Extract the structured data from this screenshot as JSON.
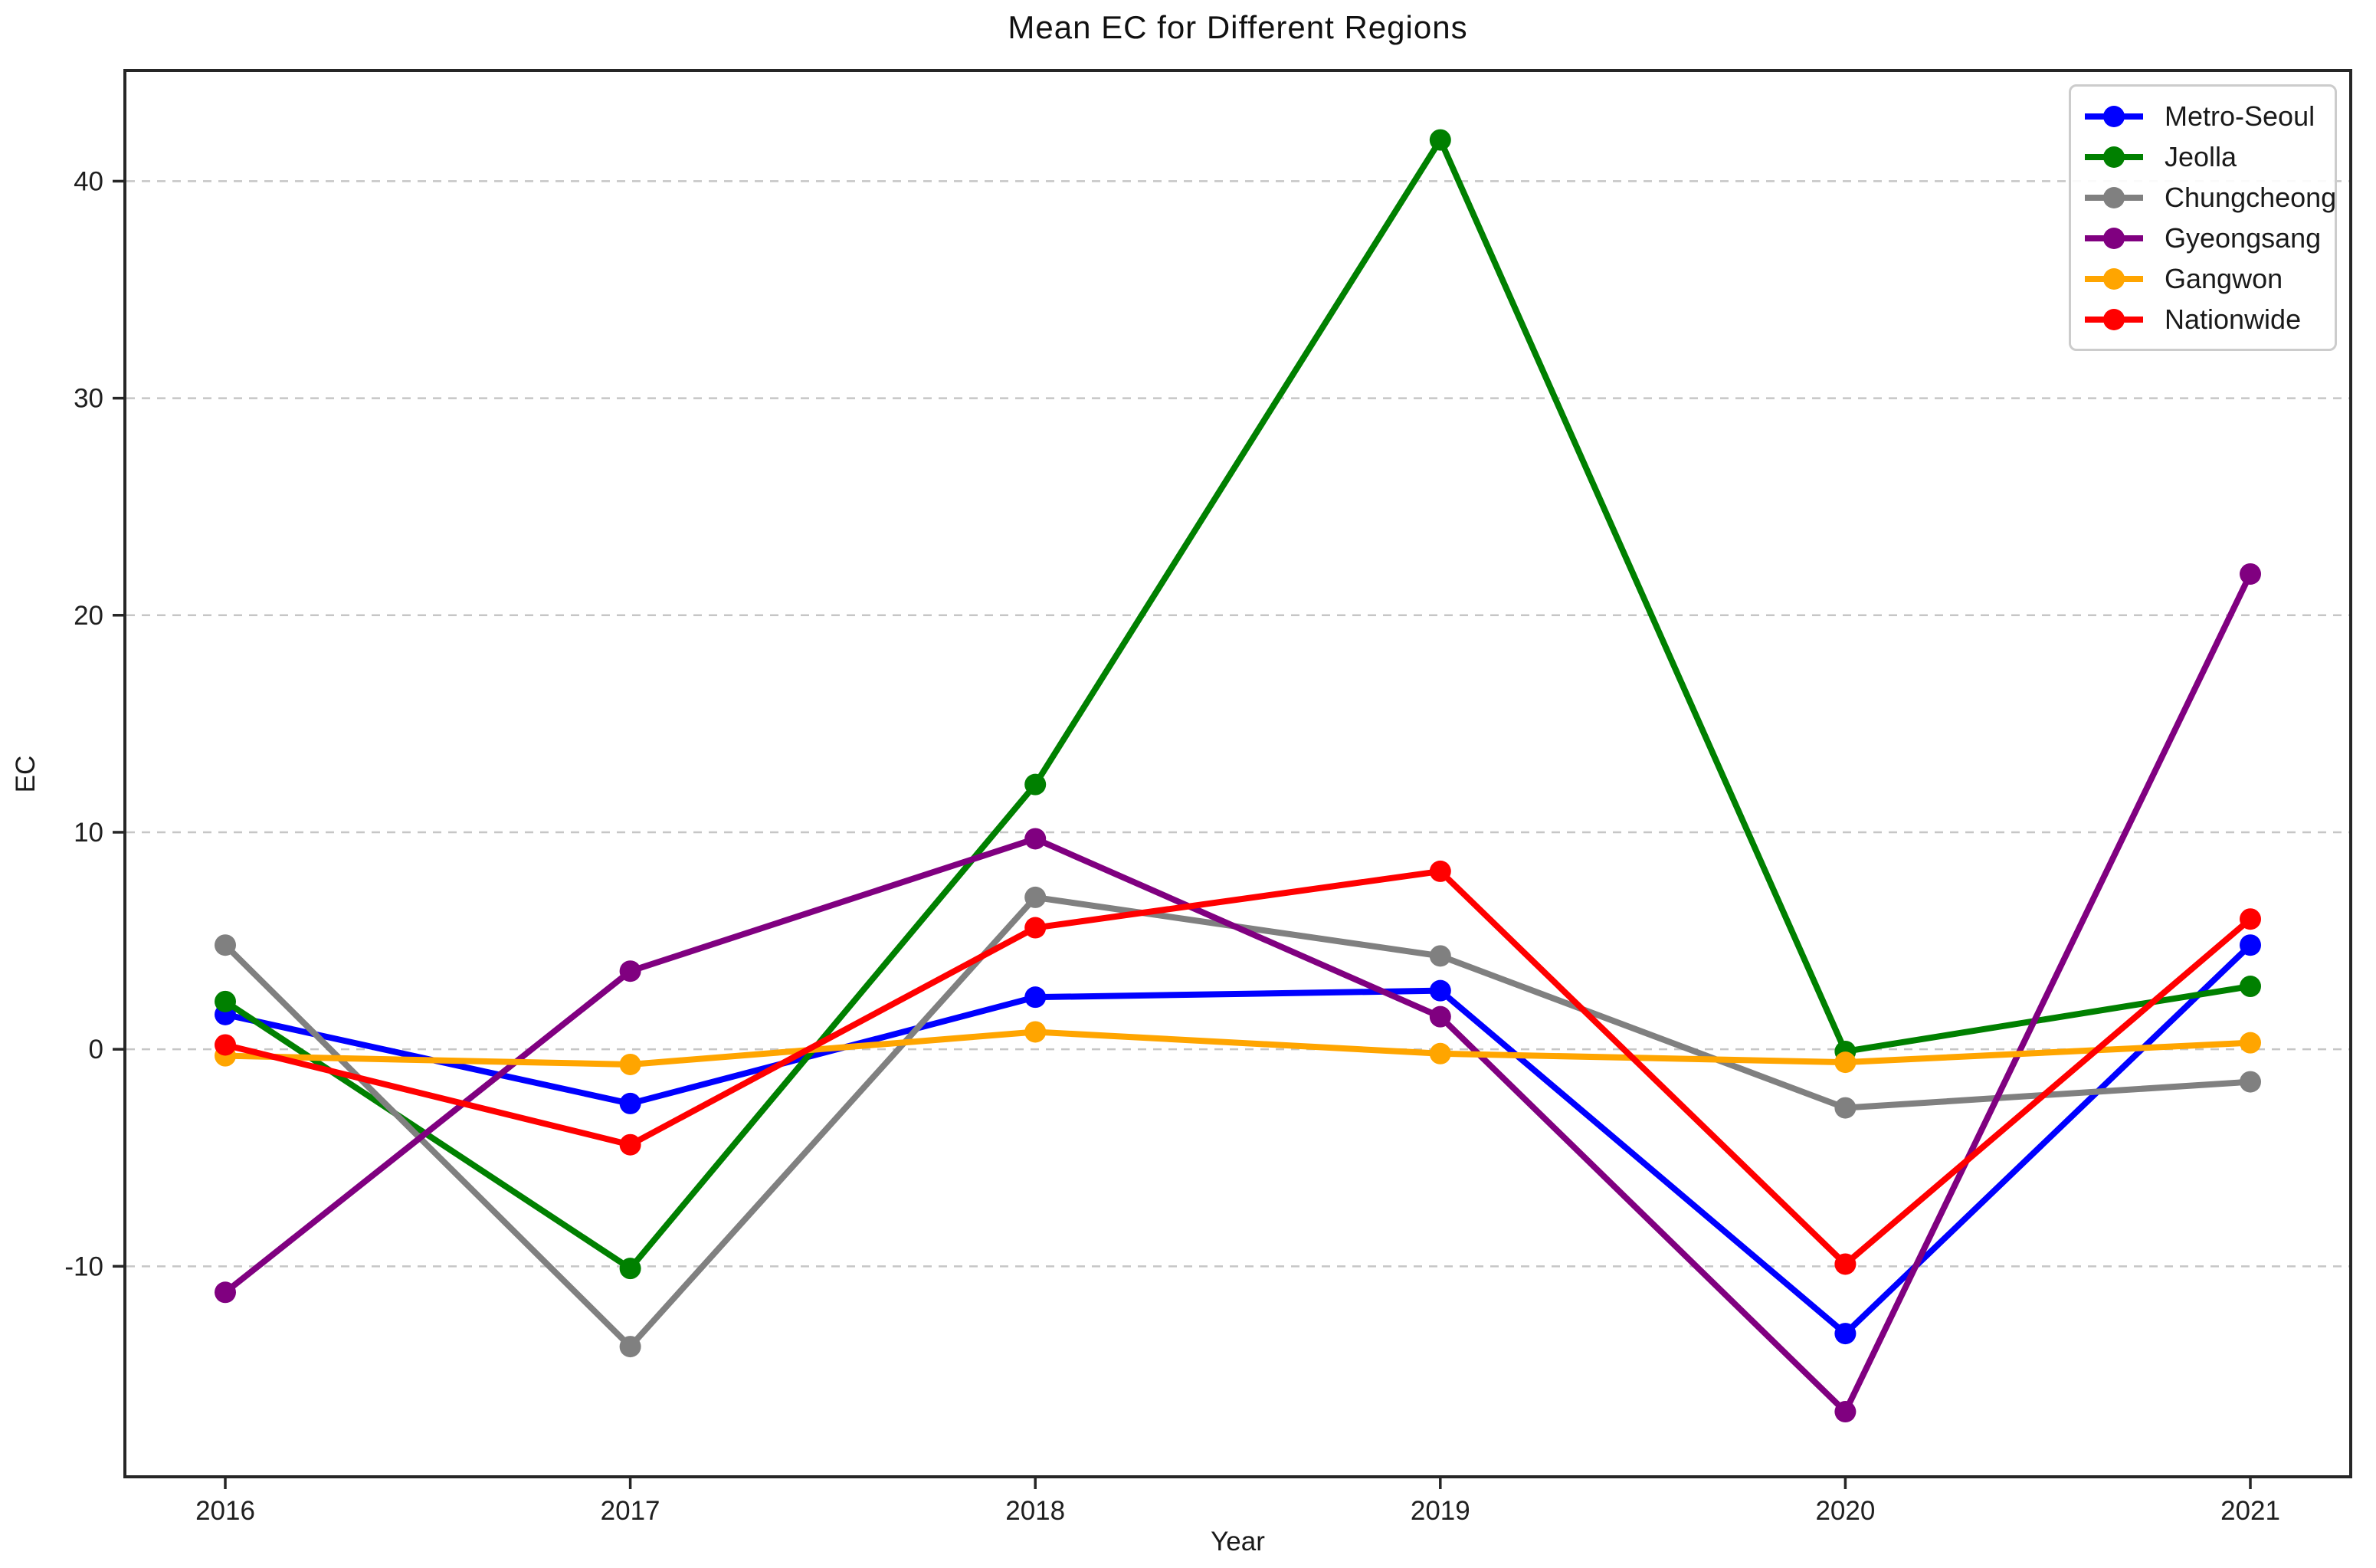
{
  "chart_data": {
    "type": "line",
    "title": "Mean EC for Different Regions",
    "xlabel": "Year",
    "ylabel": "EC",
    "x": [
      2016,
      2017,
      2018,
      2019,
      2020,
      2021
    ],
    "xlim": [
      2015.75,
      2021.25
    ],
    "yticks": [
      -10,
      0,
      10,
      20,
      30,
      40
    ],
    "ylim": [
      -19.7,
      45.1
    ],
    "grid": "horizontal-dashed",
    "grid_color": "#c6c6c6",
    "spine_color": "#262626",
    "background_color": "#ffffff",
    "legend_position": "upper-right",
    "series": [
      {
        "name": "Metro-Seoul",
        "color": "#0000ff",
        "values": [
          1.6,
          -2.5,
          2.4,
          2.7,
          -13.1,
          4.8
        ]
      },
      {
        "name": "Jeolla",
        "color": "#008000",
        "values": [
          2.2,
          -10.1,
          12.2,
          41.9,
          -0.1,
          2.9
        ]
      },
      {
        "name": "Chungcheong",
        "color": "#808080",
        "values": [
          4.8,
          -13.7,
          7.0,
          4.3,
          -2.7,
          -1.5
        ]
      },
      {
        "name": "Gyeongsang",
        "color": "#800080",
        "values": [
          -11.2,
          3.6,
          9.7,
          1.5,
          -16.7,
          21.9
        ]
      },
      {
        "name": "Gangwon",
        "color": "#ffa500",
        "values": [
          -0.3,
          -0.7,
          0.8,
          -0.2,
          -0.6,
          0.3
        ]
      },
      {
        "name": "Nationwide",
        "color": "#ff0000",
        "values": [
          0.2,
          -4.4,
          5.6,
          8.2,
          -9.9,
          6.0
        ]
      }
    ]
  }
}
